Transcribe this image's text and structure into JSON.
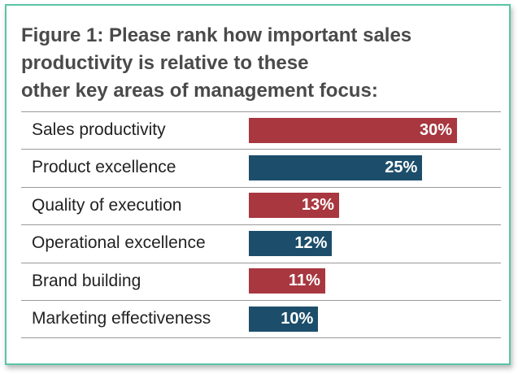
{
  "figure": {
    "title_lines": [
      "Figure 1: Please rank how important sales",
      "productivity is relative to these",
      "other key areas of management focus:"
    ]
  },
  "colors": {
    "red": "#a8373f",
    "blue": "#1c4e6b",
    "border": "#59c4a6"
  },
  "chart_data": {
    "type": "bar",
    "orientation": "horizontal",
    "title": "Figure 1: Please rank how important sales productivity is relative to these other key areas of management focus:",
    "categories": [
      "Sales productivity",
      "Product excellence",
      "Quality of execution",
      "Operational excellence",
      "Brand building",
      "Marketing effectiveness"
    ],
    "values": [
      30,
      25,
      13,
      12,
      11,
      10
    ],
    "value_labels": [
      "30%",
      "25%",
      "13%",
      "12%",
      "11%",
      "10%"
    ],
    "bar_colors": [
      "#a8373f",
      "#1c4e6b",
      "#a8373f",
      "#1c4e6b",
      "#a8373f",
      "#1c4e6b"
    ],
    "unit": "%",
    "xlim": [
      0,
      30
    ],
    "grid": false,
    "legend": "none"
  }
}
